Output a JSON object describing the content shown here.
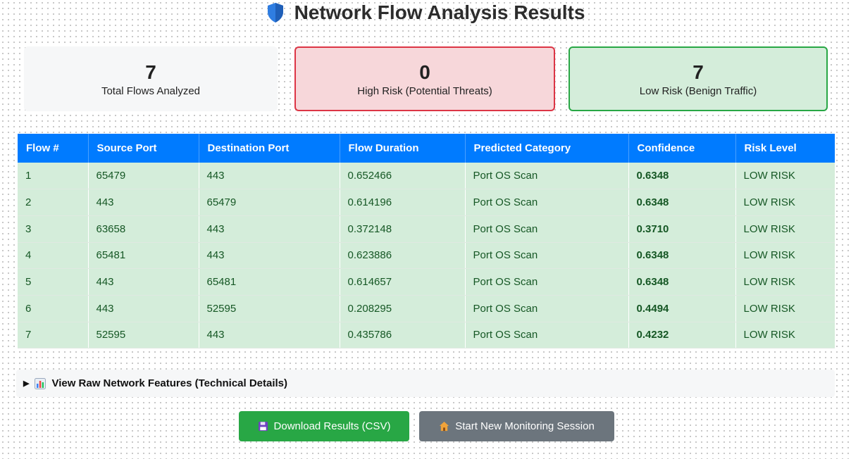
{
  "header": {
    "title": "Network Flow Analysis Results",
    "icon": "shield-icon"
  },
  "summary": {
    "total": {
      "value": "7",
      "label": "Total Flows Analyzed"
    },
    "high": {
      "value": "0",
      "label": "High Risk (Potential Threats)"
    },
    "low": {
      "value": "7",
      "label": "Low Risk (Benign Traffic)"
    }
  },
  "table": {
    "headers": [
      "Flow #",
      "Source Port",
      "Destination Port",
      "Flow Duration",
      "Predicted Category",
      "Confidence",
      "Risk Level"
    ],
    "rows": [
      [
        "1",
        "65479",
        "443",
        "0.652466",
        "Port OS Scan",
        "0.6348",
        "LOW RISK"
      ],
      [
        "2",
        "443",
        "65479",
        "0.614196",
        "Port OS Scan",
        "0.6348",
        "LOW RISK"
      ],
      [
        "3",
        "63658",
        "443",
        "0.372148",
        "Port OS Scan",
        "0.3710",
        "LOW RISK"
      ],
      [
        "4",
        "65481",
        "443",
        "0.623886",
        "Port OS Scan",
        "0.6348",
        "LOW RISK"
      ],
      [
        "5",
        "443",
        "65481",
        "0.614657",
        "Port OS Scan",
        "0.6348",
        "LOW RISK"
      ],
      [
        "6",
        "443",
        "52595",
        "0.208295",
        "Port OS Scan",
        "0.4494",
        "LOW RISK"
      ],
      [
        "7",
        "52595",
        "443",
        "0.435786",
        "Port OS Scan",
        "0.4232",
        "LOW RISK"
      ]
    ]
  },
  "details": {
    "label": "View Raw Network Features (Technical Details)",
    "icon": "bar-chart-icon"
  },
  "buttons": {
    "download": {
      "label": "Download Results (CSV)",
      "icon": "floppy-disk-icon"
    },
    "new_session": {
      "label": "Start New Monitoring Session",
      "icon": "house-icon"
    }
  },
  "colors": {
    "header_blue": "#007bff",
    "high_risk": "#dc3545",
    "low_risk": "#28a745",
    "confidence_high": "#ffc107",
    "confidence_low": "#dc3545"
  }
}
